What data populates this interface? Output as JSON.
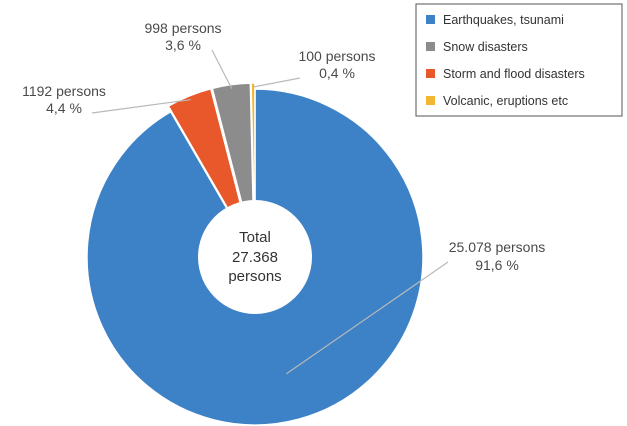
{
  "chart_data": {
    "type": "pie",
    "style": "donut",
    "total": {
      "line1": "Total",
      "line2": "27.368",
      "line3": "persons"
    },
    "slices": [
      {
        "name": "Earthquakes, tsunami",
        "value": 25078,
        "percent": 91.6,
        "persons_label": "25.078 persons",
        "percent_label": "91,6 %",
        "color": "#3d82c7"
      },
      {
        "name": "Snow disasters",
        "value": 998,
        "percent": 3.6,
        "persons_label": "998 persons",
        "percent_label": "3,6 %",
        "color": "#8c8c8c"
      },
      {
        "name": "Storm and flood disasters",
        "value": 1192,
        "percent": 4.4,
        "persons_label": "1192 persons",
        "percent_label": "4,4 %",
        "color": "#e8582a"
      },
      {
        "name": "Volcanic, eruptions etc",
        "value": 100,
        "percent": 0.4,
        "persons_label": "100 persons",
        "percent_label": "0,4 %",
        "color": "#f2b632"
      }
    ],
    "legend_position": "top-right",
    "leader_line_color": "#b9b9b9"
  }
}
